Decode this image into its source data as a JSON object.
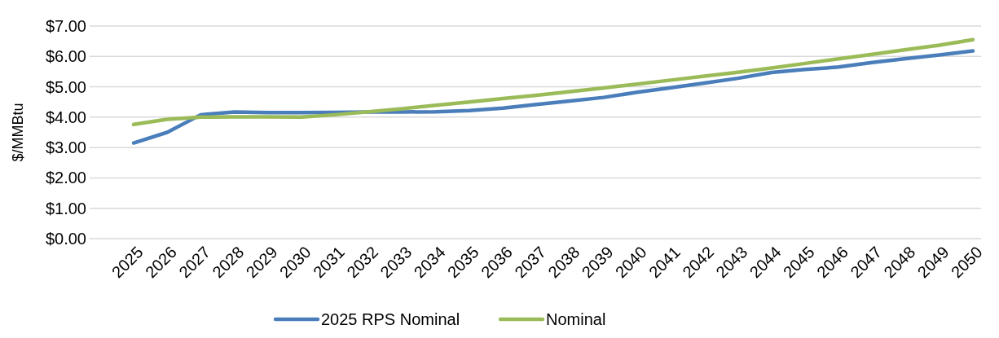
{
  "chart_data": {
    "type": "line",
    "ylabel": "$/MMBtu",
    "categories": [
      "2025",
      "2026",
      "2027",
      "2028",
      "2029",
      "2030",
      "2031",
      "2032",
      "2033",
      "2034",
      "2035",
      "2036",
      "2037",
      "2038",
      "2039",
      "2040",
      "2041",
      "2042",
      "2043",
      "2044",
      "2045",
      "2046",
      "2047",
      "2048",
      "2049",
      "2050"
    ],
    "series": [
      {
        "name": "2025 RPS Nominal",
        "color": "#4a7ebb",
        "values": [
          3.15,
          3.5,
          4.08,
          4.17,
          4.15,
          4.15,
          4.16,
          4.17,
          4.17,
          4.18,
          4.22,
          4.3,
          4.42,
          4.53,
          4.65,
          4.82,
          4.97,
          5.12,
          5.28,
          5.47,
          5.57,
          5.65,
          5.8,
          5.93,
          6.05,
          6.18
        ]
      },
      {
        "name": "Nominal",
        "color": "#9bbb59",
        "values": [
          3.76,
          3.93,
          4.0,
          4.01,
          4.01,
          4.0,
          4.08,
          4.18,
          4.28,
          4.39,
          4.5,
          4.61,
          4.72,
          4.84,
          4.96,
          5.09,
          5.22,
          5.35,
          5.48,
          5.62,
          5.77,
          5.92,
          6.07,
          6.22,
          6.37,
          6.55
        ]
      }
    ],
    "ylim": [
      0,
      7
    ],
    "yticks": [
      {
        "value": 0,
        "label": "$0.00"
      },
      {
        "value": 1,
        "label": "$1.00"
      },
      {
        "value": 2,
        "label": "$2.00"
      },
      {
        "value": 3,
        "label": "$3.00"
      },
      {
        "value": 4,
        "label": "$4.00"
      },
      {
        "value": 5,
        "label": "$5.00"
      },
      {
        "value": 6,
        "label": "$6.00"
      },
      {
        "value": 7,
        "label": "$7.00"
      }
    ],
    "grid": "y",
    "legend": "bottom",
    "marker": "none",
    "line_style": "solid"
  }
}
